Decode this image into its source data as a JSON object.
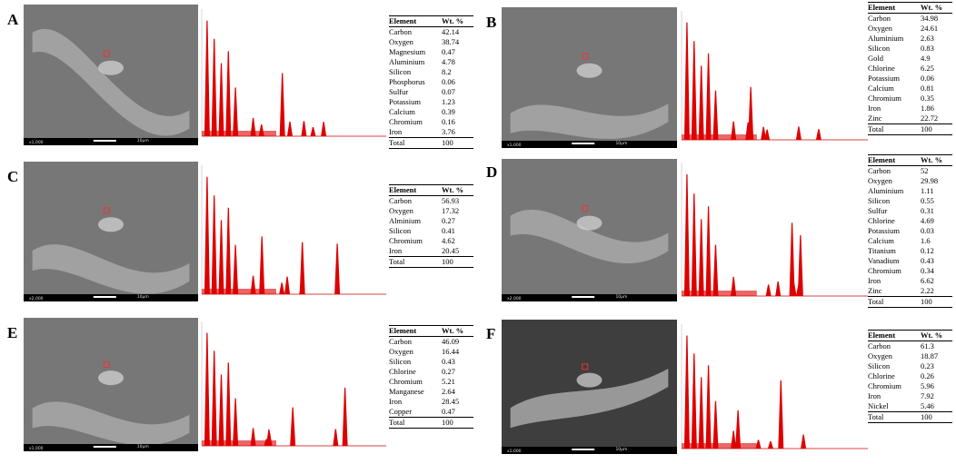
{
  "panels": [
    {
      "label": "A",
      "magnification": "x1,000",
      "scale": "10μm",
      "table": {
        "header": [
          "Element",
          "Wt. %"
        ],
        "rows": [
          [
            "Carbon",
            "42.14"
          ],
          [
            "Oxygen",
            "38.74"
          ],
          [
            "Magnesium",
            "0.47"
          ],
          [
            "Aluminium",
            "4.78"
          ],
          [
            "Silicon",
            "8.2"
          ],
          [
            "Phosphorus",
            "0.06"
          ],
          [
            "Sulfur",
            "0.07"
          ],
          [
            "Potassium",
            "1.23"
          ],
          [
            "Calcium",
            "0.39"
          ],
          [
            "Chromium",
            "0.16"
          ],
          [
            "Iron",
            "3.76"
          ]
        ],
        "total": [
          "Total",
          "100"
        ]
      }
    },
    {
      "label": "B",
      "magnification": "x1,000",
      "scale": "10μm",
      "table": {
        "header": [
          "Element",
          "Wt. %"
        ],
        "rows": [
          [
            "Carbon",
            "34.98"
          ],
          [
            "Oxygen",
            "24.61"
          ],
          [
            "Aluminium",
            "2.63"
          ],
          [
            "Silicon",
            "0.83"
          ],
          [
            "Gold",
            "4.9"
          ],
          [
            "Chlorine",
            "6.25"
          ],
          [
            "Potassium",
            "0.06"
          ],
          [
            "Calcium",
            "0.81"
          ],
          [
            "Chromium",
            "0.35"
          ],
          [
            "Iron",
            "1.86"
          ],
          [
            "Zinc",
            "22.72"
          ]
        ],
        "total": [
          "Total",
          "100"
        ]
      }
    },
    {
      "label": "C",
      "magnification": "x2,000",
      "scale": "10μm",
      "table": {
        "header": [
          "Element",
          "Wt. %"
        ],
        "rows": [
          [
            "Carbon",
            "56.93"
          ],
          [
            "Oxygen",
            "17.32"
          ],
          [
            "Alminium",
            "0.27"
          ],
          [
            "Silicon",
            "0.41"
          ],
          [
            "Chromium",
            "4.62"
          ],
          [
            "Iron",
            "20.45"
          ]
        ],
        "total": [
          "Total",
          "100"
        ]
      }
    },
    {
      "label": "D",
      "magnification": "x2,000",
      "scale": "10μm",
      "table": {
        "header": [
          "Element",
          "Wt. %"
        ],
        "rows": [
          [
            "Carbon",
            "52"
          ],
          [
            "Oxygen",
            "29.98"
          ],
          [
            "Aluminium",
            "1.11"
          ],
          [
            "Silicon",
            "0.55"
          ],
          [
            "Sulfur",
            "0.31"
          ],
          [
            "Chlorine",
            "4.69"
          ],
          [
            "Potassium",
            "0.03"
          ],
          [
            "Calcium",
            "1.6"
          ],
          [
            "Titanium",
            "0.12"
          ],
          [
            "Vanadium",
            "0.43"
          ],
          [
            "Chromium",
            "0.34"
          ],
          [
            "Iron",
            "6.62"
          ],
          [
            "Zinc",
            "2.22"
          ]
        ],
        "total": [
          "Total",
          "100"
        ]
      }
    },
    {
      "label": "E",
      "magnification": "x1,000",
      "scale": "10μm",
      "table": {
        "header": [
          "Element",
          "Wt. %"
        ],
        "rows": [
          [
            "Carbon",
            "46.09"
          ],
          [
            "Oxygen",
            "16.44"
          ],
          [
            "Silicon",
            "0.43"
          ],
          [
            "Chlorine",
            "0.27"
          ],
          [
            "Chromium",
            "5.21"
          ],
          [
            "Manganese",
            "2.64"
          ],
          [
            "Iron",
            "28.45"
          ],
          [
            "Copper",
            "0.47"
          ]
        ],
        "total": [
          "Total",
          "100"
        ]
      }
    },
    {
      "label": "F",
      "magnification": "x1,000",
      "scale": "10μm",
      "table": {
        "header": [
          "Element",
          "Wt. %"
        ],
        "rows": [
          [
            "Carbon",
            "61.3"
          ],
          [
            "Oxygen",
            "18.87"
          ],
          [
            "Silicon",
            "0.23"
          ],
          [
            "Chlorine",
            "0.26"
          ],
          [
            "Chromium",
            "5.96"
          ],
          [
            "Iron",
            "7.92"
          ],
          [
            "Nickel",
            "5.46"
          ]
        ],
        "total": [
          "Total",
          "100"
        ]
      }
    }
  ]
}
